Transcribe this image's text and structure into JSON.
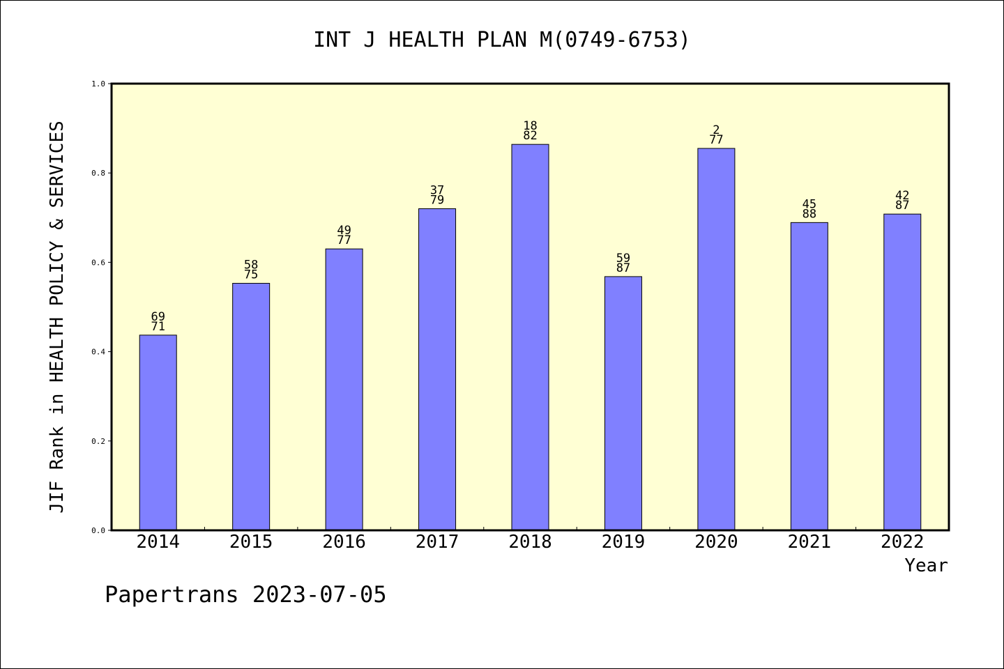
{
  "chart_data": {
    "type": "bar",
    "title": "INT J HEALTH PLAN M(0749-6753)",
    "xlabel": "Year",
    "ylabel": "JIF Rank in HEALTH POLICY & SERVICES",
    "ylim": [
      0,
      1.0
    ],
    "yticks": [
      "0.0",
      "0.2",
      "0.4",
      "0.6",
      "0.8",
      "1.0"
    ],
    "grid": false,
    "categories": [
      "2014",
      "2015",
      "2016",
      "2017",
      "2018",
      "2019",
      "2020",
      "2021",
      "2022"
    ],
    "values": [
      0.437,
      0.553,
      0.63,
      0.72,
      0.864,
      0.568,
      0.855,
      0.689,
      0.708
    ],
    "rank": [
      69,
      58,
      49,
      37,
      18,
      59,
      2,
      45,
      42
    ],
    "total": [
      71,
      75,
      77,
      79,
      82,
      87,
      77,
      88,
      87
    ],
    "colors": {
      "bar": "#8080ff",
      "plot_bg": "#ffffd4",
      "axis": "#000000"
    }
  },
  "footer": "Papertrans 2023-07-05"
}
